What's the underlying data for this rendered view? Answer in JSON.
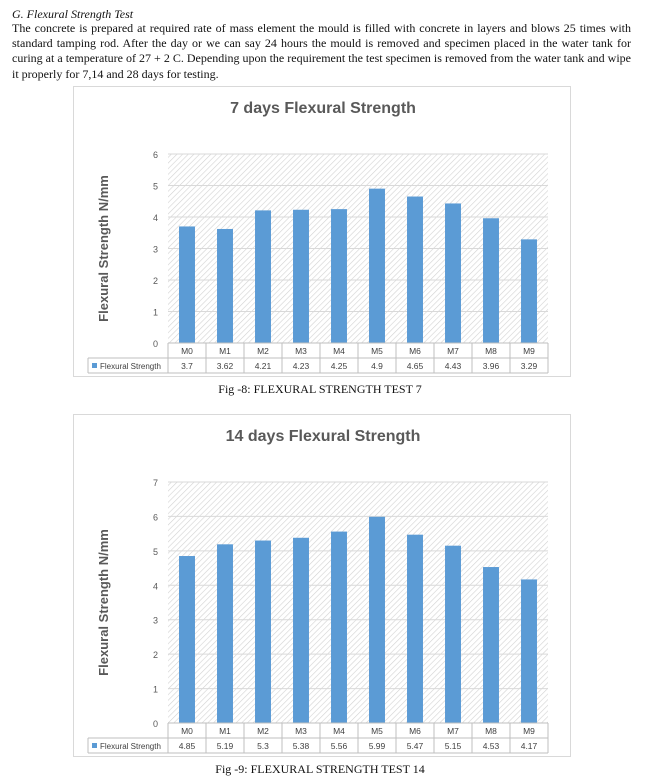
{
  "section_heading": "G.   Flexural Strength Test",
  "paragraph": "The concrete is prepared at required rate of mass element the mould is filled with concrete in layers and blows 25 times with standard tamping rod. After the day or we can say 24 hours the mould is removed and specimen placed in the water tank for curing at a temperature of 27 + 2 C. Depending upon the requirement the test specimen is removed from the water tank and wipe it properly for 7,14 and 28 days for testing.",
  "series_color": "#5b9bd5",
  "chart_data": [
    {
      "type": "bar",
      "title": "7 days Flexural Strength",
      "ylabel": "Flexural  Strength N/mm",
      "xlabel": "",
      "ylim": [
        0,
        6
      ],
      "yticks": [
        "0",
        "1",
        "2",
        "3",
        "4",
        "5",
        "6"
      ],
      "grid": true,
      "legend": "data-table",
      "categories": [
        "M0",
        "M1",
        "M2",
        "M3",
        "M4",
        "M5",
        "M6",
        "M7",
        "M8",
        "M9"
      ],
      "series": [
        {
          "name": "Flexural Strength",
          "values": [
            3.7,
            3.62,
            4.21,
            4.23,
            4.25,
            4.9,
            4.65,
            4.43,
            3.96,
            3.29
          ],
          "labels": [
            "3.7",
            "3.62",
            "4.21",
            "4.23",
            "4.25",
            "4.9",
            "4.65",
            "4.43",
            "3.96",
            "3.29"
          ]
        }
      ],
      "caption": "Fig -8:   FLEXURAL STRENGTH TEST 7"
    },
    {
      "type": "bar",
      "title": "14 days Flexural Strength",
      "ylabel": "Flexural  Strength N/mm",
      "xlabel": "",
      "ylim": [
        0,
        7
      ],
      "yticks": [
        "0",
        "1",
        "2",
        "3",
        "4",
        "5",
        "6",
        "7"
      ],
      "grid": true,
      "legend": "data-table",
      "categories": [
        "M0",
        "M1",
        "M2",
        "M3",
        "M4",
        "M5",
        "M6",
        "M7",
        "M8",
        "M9"
      ],
      "series": [
        {
          "name": "Flexural Strength",
          "values": [
            4.85,
            5.19,
            5.3,
            5.38,
            5.56,
            5.99,
            5.47,
            5.15,
            4.53,
            4.17
          ],
          "labels": [
            "4.85",
            "5.19",
            "5.3",
            "5.38",
            "5.56",
            "5.99",
            "5.47",
            "5.15",
            "4.53",
            "4.17"
          ]
        }
      ],
      "caption": "Fig -9:   FLEXURAL STRENGTH TEST 14"
    }
  ]
}
